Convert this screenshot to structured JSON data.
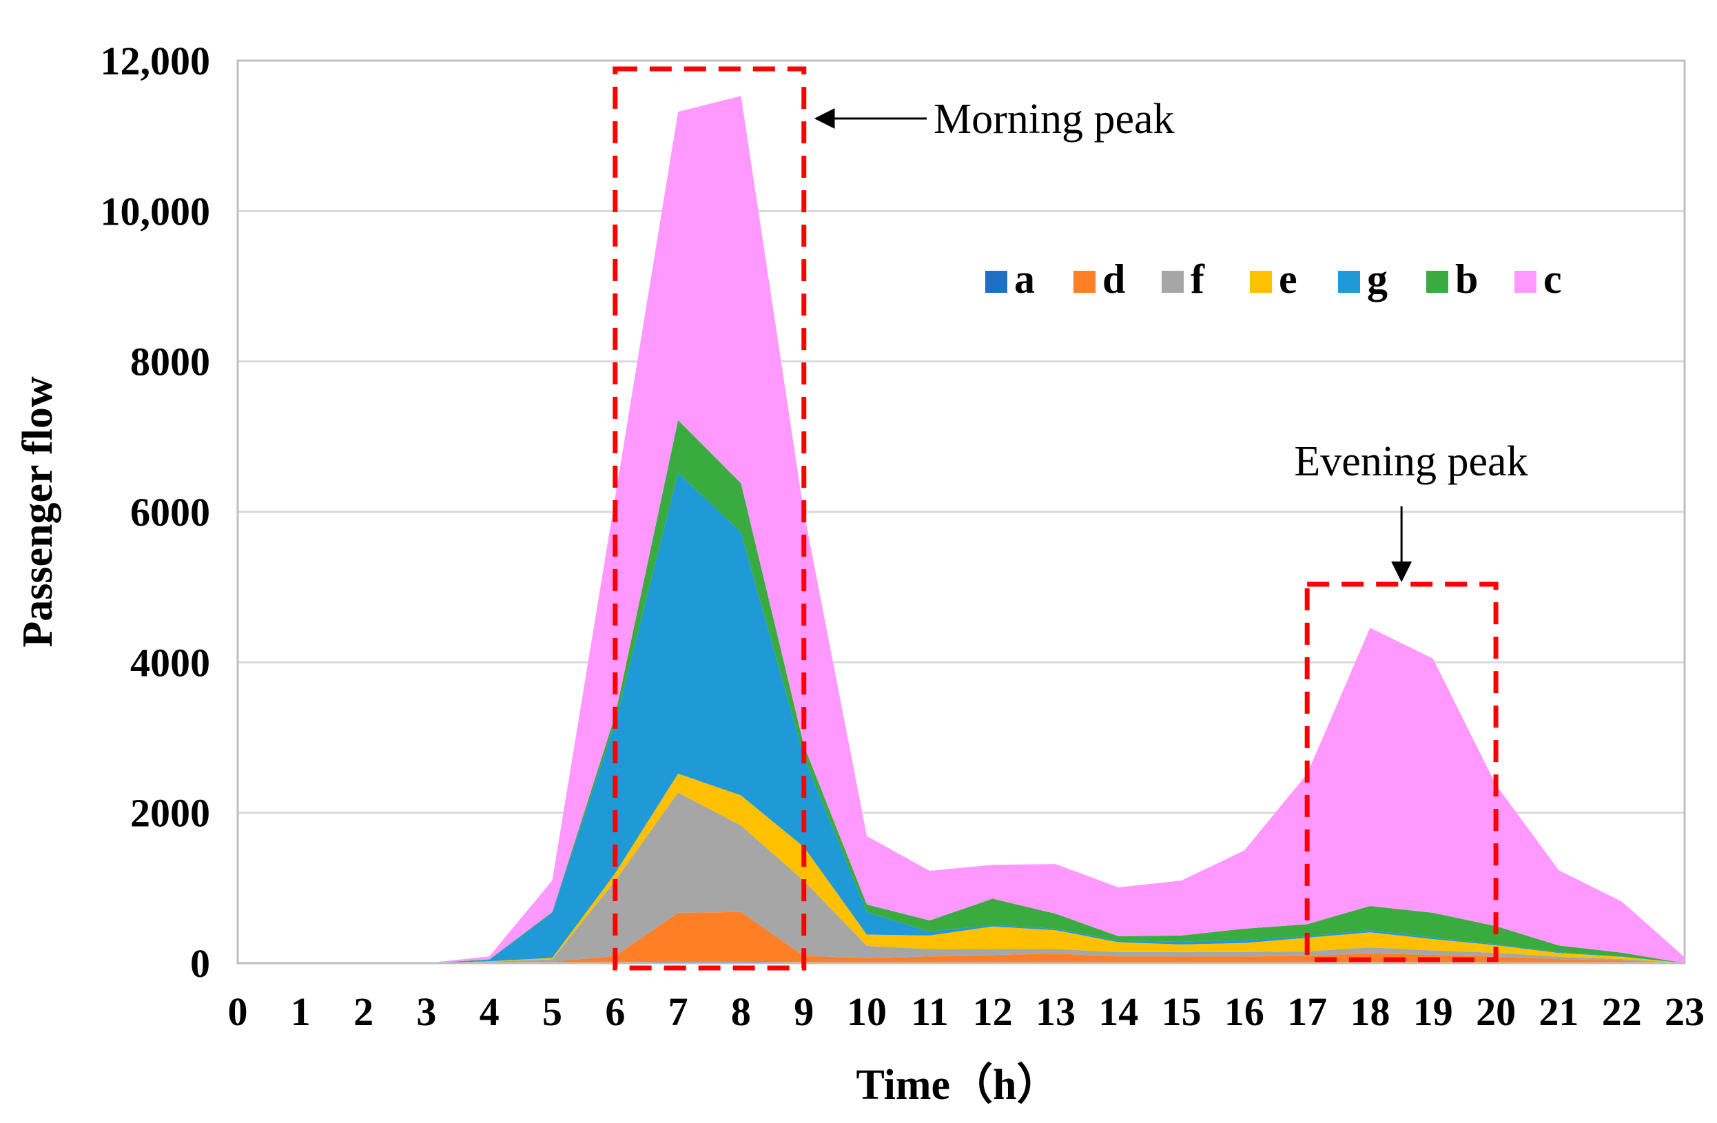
{
  "chart_data": {
    "type": "area",
    "stacked": true,
    "title": "",
    "xlabel": "Time（h）",
    "ylabel": "Passenger flow",
    "x": [
      0,
      1,
      2,
      3,
      4,
      5,
      6,
      7,
      8,
      9,
      10,
      11,
      12,
      13,
      14,
      15,
      16,
      17,
      18,
      19,
      20,
      21,
      22,
      23
    ],
    "x_tick_labels": [
      "0",
      "1",
      "2",
      "3",
      "4",
      "5",
      "6",
      "7",
      "8",
      "9",
      "10",
      "11",
      "12",
      "13",
      "14",
      "15",
      "16",
      "17",
      "18",
      "19",
      "20",
      "21",
      "22",
      "23"
    ],
    "ylim": [
      0,
      12000
    ],
    "y_ticks": [
      0,
      2000,
      4000,
      6000,
      8000,
      10000,
      12000
    ],
    "y_tick_labels": [
      "0",
      "2000",
      "4000",
      "6000",
      "8000",
      "10,000",
      "12,000"
    ],
    "grid": true,
    "legend_position": "top-right",
    "series": [
      {
        "name": "a",
        "color": "#1f6fc6",
        "values": [
          0,
          0,
          0,
          0,
          5,
          10,
          15,
          20,
          20,
          15,
          10,
          8,
          8,
          8,
          8,
          8,
          8,
          8,
          10,
          10,
          8,
          5,
          5,
          0
        ]
      },
      {
        "name": "d",
        "color": "#ff7f27",
        "values": [
          0,
          0,
          0,
          0,
          5,
          10,
          80,
          650,
          660,
          80,
          60,
          80,
          100,
          120,
          80,
          80,
          80,
          90,
          120,
          100,
          80,
          50,
          30,
          0
        ]
      },
      {
        "name": "f",
        "color": "#a6a6a6",
        "values": [
          0,
          0,
          0,
          0,
          10,
          30,
          1000,
          1600,
          1150,
          1000,
          160,
          100,
          80,
          60,
          60,
          60,
          60,
          60,
          80,
          60,
          50,
          30,
          20,
          0
        ]
      },
      {
        "name": "e",
        "color": "#ffc000",
        "values": [
          0,
          0,
          0,
          0,
          5,
          20,
          100,
          250,
          400,
          450,
          150,
          180,
          300,
          250,
          130,
          100,
          120,
          180,
          200,
          150,
          100,
          50,
          30,
          0
        ]
      },
      {
        "name": "g",
        "color": "#1f9ad6",
        "values": [
          0,
          0,
          0,
          0,
          20,
          600,
          2000,
          4000,
          3500,
          1200,
          300,
          50,
          20,
          20,
          20,
          40,
          40,
          20,
          30,
          20,
          15,
          10,
          5,
          0
        ]
      },
      {
        "name": "b",
        "color": "#3aab3f",
        "values": [
          0,
          0,
          0,
          0,
          5,
          10,
          100,
          700,
          650,
          150,
          100,
          150,
          350,
          200,
          60,
          80,
          150,
          160,
          320,
          330,
          240,
          90,
          50,
          0
        ]
      },
      {
        "name": "c",
        "color": "#ff99ff",
        "values": [
          0,
          0,
          0,
          0,
          40,
          420,
          2900,
          4100,
          5150,
          3100,
          910,
          660,
          450,
          660,
          650,
          730,
          1040,
          2000,
          3700,
          3380,
          1880,
          1000,
          680,
          80
        ]
      }
    ],
    "annotations": [
      {
        "text": "Morning peak",
        "range": [
          6,
          9
        ]
      },
      {
        "text": "Evening peak",
        "range": [
          17,
          20
        ]
      }
    ]
  }
}
